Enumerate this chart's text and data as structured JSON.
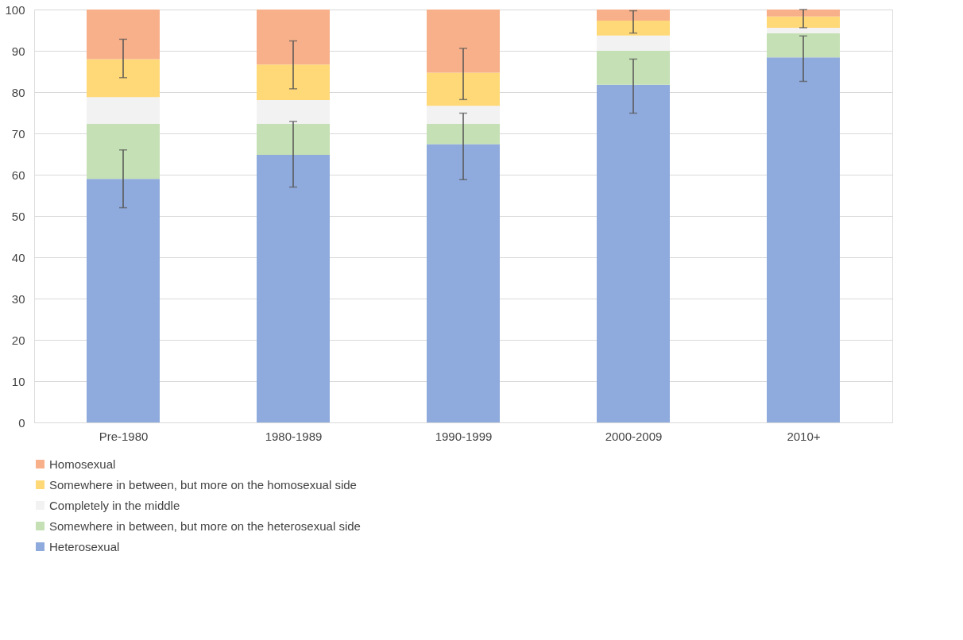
{
  "chart_data": {
    "type": "bar",
    "stacked": true,
    "categories": [
      "Pre-1980",
      "1980-1989",
      "1990-1999",
      "2000-2009",
      "2010+"
    ],
    "series": [
      {
        "name": "Heterosexual",
        "color": "#8faadc",
        "values": [
          59,
          64.8,
          67.4,
          81.8,
          88.4
        ],
        "errors": [
          [
            52,
            66
          ],
          [
            57,
            72.9
          ],
          [
            58.8,
            74.9
          ],
          [
            74.9,
            88
          ],
          [
            82.6,
            93.6
          ]
        ]
      },
      {
        "name": "Somewhere in between, but more on the heterosexual side",
        "color": "#c5e0b4",
        "values": [
          13.3,
          7.5,
          4.9,
          8.2,
          5.9
        ]
      },
      {
        "name": "Completely in the middle",
        "color": "#f2f2f2",
        "values": [
          6.5,
          5.8,
          4.4,
          3.7,
          1.3
        ]
      },
      {
        "name": "Somewhere in between, but more on the homosexual side",
        "color": "#ffd878",
        "values": [
          9.2,
          8.6,
          8,
          3.6,
          2.7
        ],
        "errors": [
          [
            83.5,
            92.8
          ],
          [
            80.8,
            92.4
          ],
          [
            78.2,
            90.6
          ],
          [
            94.3,
            99.7
          ],
          [
            95.6,
            100
          ]
        ]
      },
      {
        "name": "Homosexual",
        "color": "#f8b08a",
        "values": [
          12,
          13.3,
          15.3,
          2.7,
          1.7
        ]
      }
    ],
    "ylim": [
      0,
      100
    ],
    "yticks": [
      0,
      10,
      20,
      30,
      40,
      50,
      60,
      70,
      80,
      90,
      100
    ],
    "grid": "y",
    "legend": "bottom"
  }
}
